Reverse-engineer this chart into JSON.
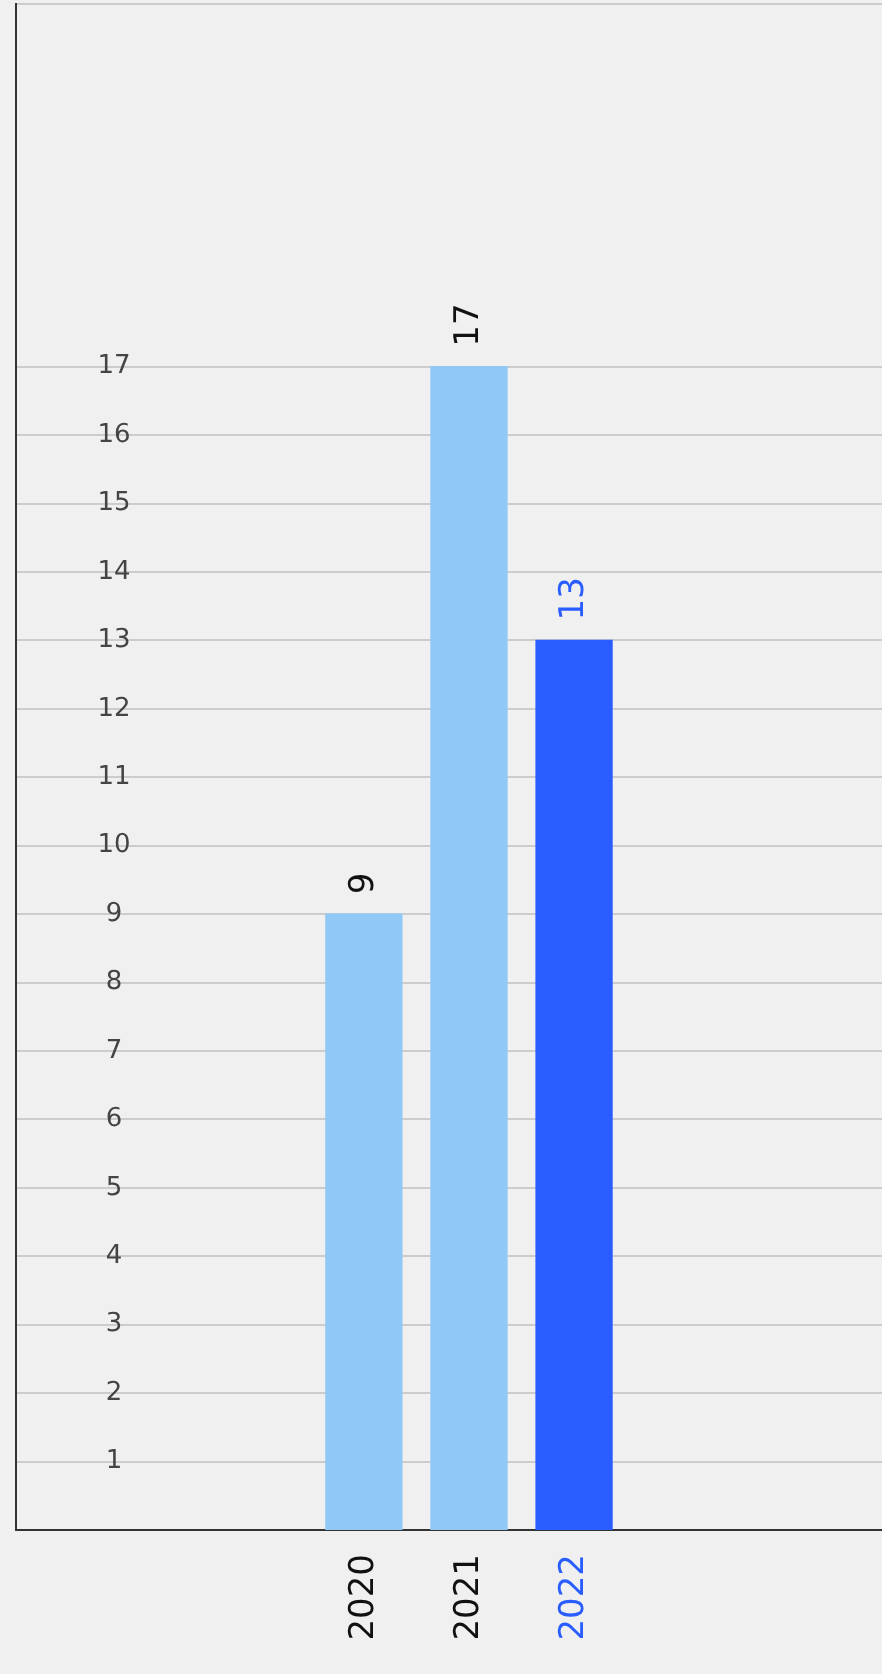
{
  "chart_data": {
    "type": "bar",
    "categories": [
      "2020",
      "2021",
      "2022"
    ],
    "values": [
      9,
      17,
      13
    ],
    "colors": [
      "#90c8f6",
      "#90c8f6",
      "#2a5dff"
    ],
    "ylim": [
      0,
      22.3
    ],
    "yticks": [
      1,
      2,
      3,
      4,
      5,
      6,
      7,
      8,
      9,
      10,
      11,
      12,
      13,
      14,
      15,
      16,
      17,
      {
        "value": 22.3,
        "label": null
      }
    ],
    "grid": "y",
    "data_labels": true
  }
}
